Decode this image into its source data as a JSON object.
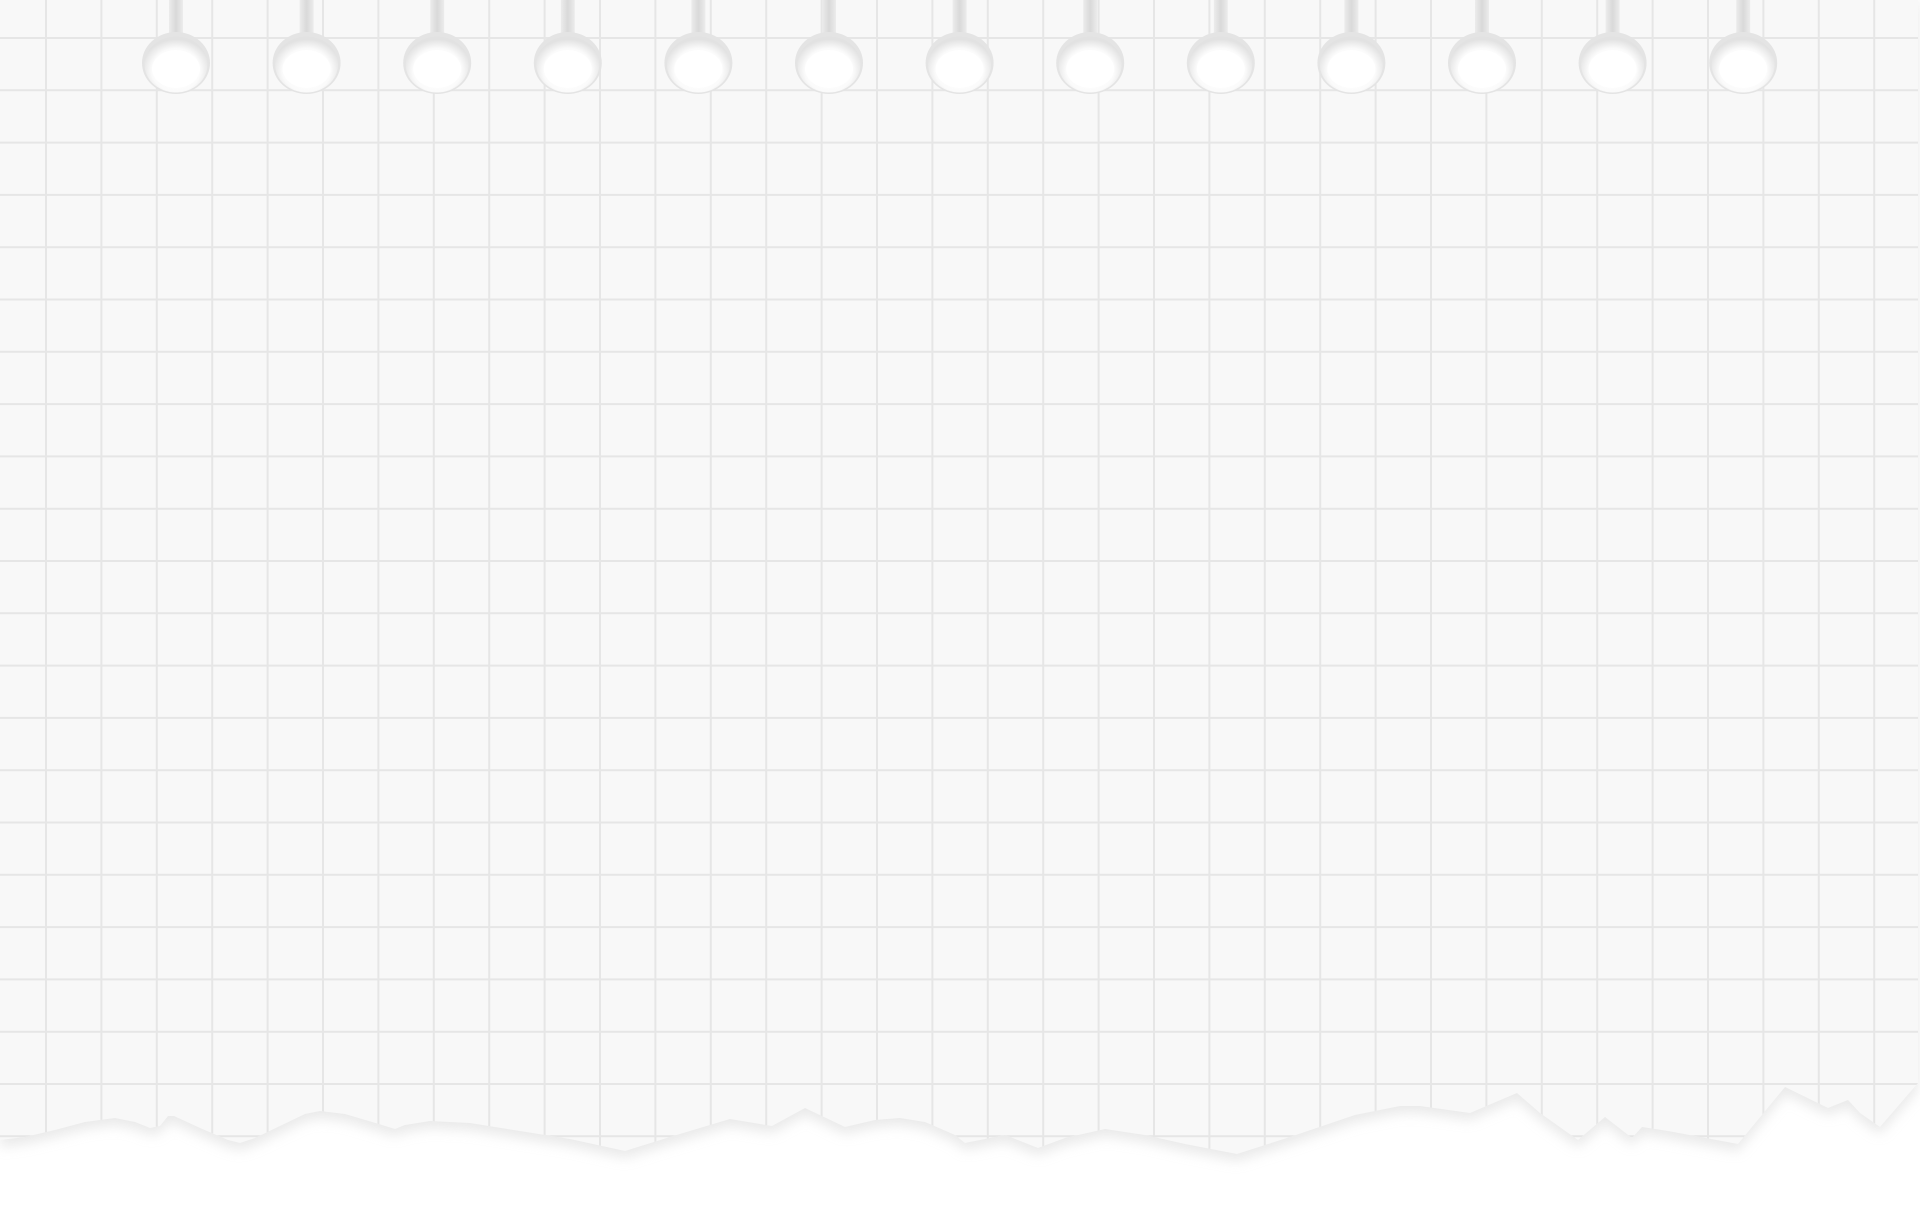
{
  "page": {
    "background_color": "#ffffff"
  },
  "notebook_sheet": {
    "paper_color": "#f8f8f8",
    "grid_line_color": "#e6e6e6",
    "hole_count": 13,
    "hole_fill_color": "#ffffff",
    "hole_shade_color": "#e4e4e4",
    "binding_slot_color": "#e2e2e2",
    "torn_bottom_edge": true,
    "shadow_color": "#d8d8d8",
    "text": []
  }
}
